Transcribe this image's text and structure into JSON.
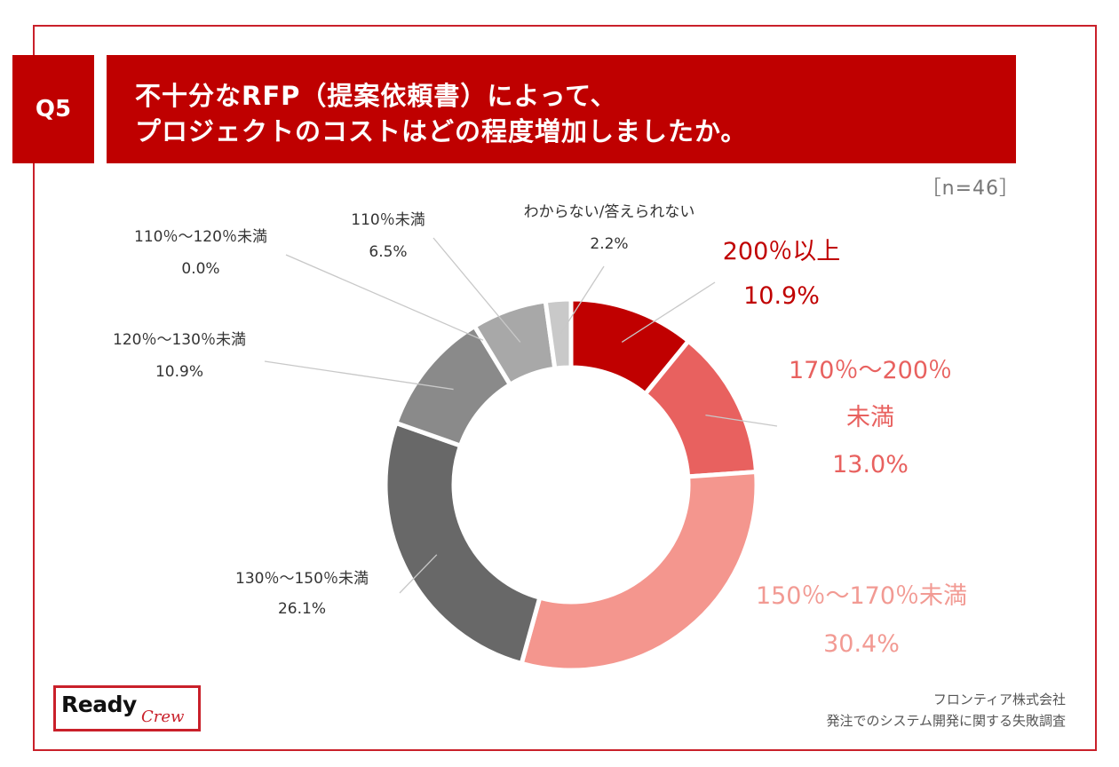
{
  "header": {
    "question_no": "Q5",
    "title_line1": "不十分なRFP（提案依頼書）によって、",
    "title_line2": "プロジェクトのコストはどの程度増加しましたか。"
  },
  "sample_size": "［n=46］",
  "chart_data": {
    "type": "pie",
    "title": "不十分なRFP（提案依頼書）によって、プロジェクトのコストはどの程度増加しましたか。",
    "n": 46,
    "slices": [
      {
        "label": "200％以上",
        "label_lines": [
          "200％以上"
        ],
        "value": 10.9,
        "value_label": "10.9%",
        "color": "#c00000",
        "text_color": "#c00000"
      },
      {
        "label": "170％～200％未満",
        "label_lines": [
          "170％～200％",
          "未満"
        ],
        "value": 13.0,
        "value_label": "13.0%",
        "color": "#e8615f",
        "text_color": "#e8615f"
      },
      {
        "label": "150％～170％未満",
        "label_lines": [
          "150％～170％未満"
        ],
        "value": 30.4,
        "value_label": "30.4%",
        "color": "#f4968e",
        "text_color": "#f29a93"
      },
      {
        "label": "130％～150％未満",
        "label_lines": [
          "130％～150％未満"
        ],
        "value": 26.1,
        "value_label": "26.1%",
        "color": "#686868",
        "text_color": "#333333"
      },
      {
        "label": "120％～130％未満",
        "label_lines": [
          "120％～130％未満"
        ],
        "value": 10.9,
        "value_label": "10.9%",
        "color": "#8a8a8a",
        "text_color": "#333333"
      },
      {
        "label": "110％～120％未満",
        "label_lines": [
          "110％～120％未満"
        ],
        "value": 0.0,
        "value_label": "0.0%",
        "color": "#9a9a9a",
        "text_color": "#333333"
      },
      {
        "label": "110％未満",
        "label_lines": [
          "110％未満"
        ],
        "value": 6.5,
        "value_label": "6.5%",
        "color": "#a8a8a8",
        "text_color": "#333333"
      },
      {
        "label": "わからない/答えられない",
        "label_lines": [
          "わからない/答えられない"
        ],
        "value": 2.2,
        "value_label": "2.2%",
        "color": "#c9c9c9",
        "text_color": "#333333"
      }
    ]
  },
  "logo": {
    "main": "Ready",
    "script": "Crew"
  },
  "source": {
    "line1": "フロンティア株式会社",
    "line2": "発注でのシステム開発に関する失敗調査"
  }
}
